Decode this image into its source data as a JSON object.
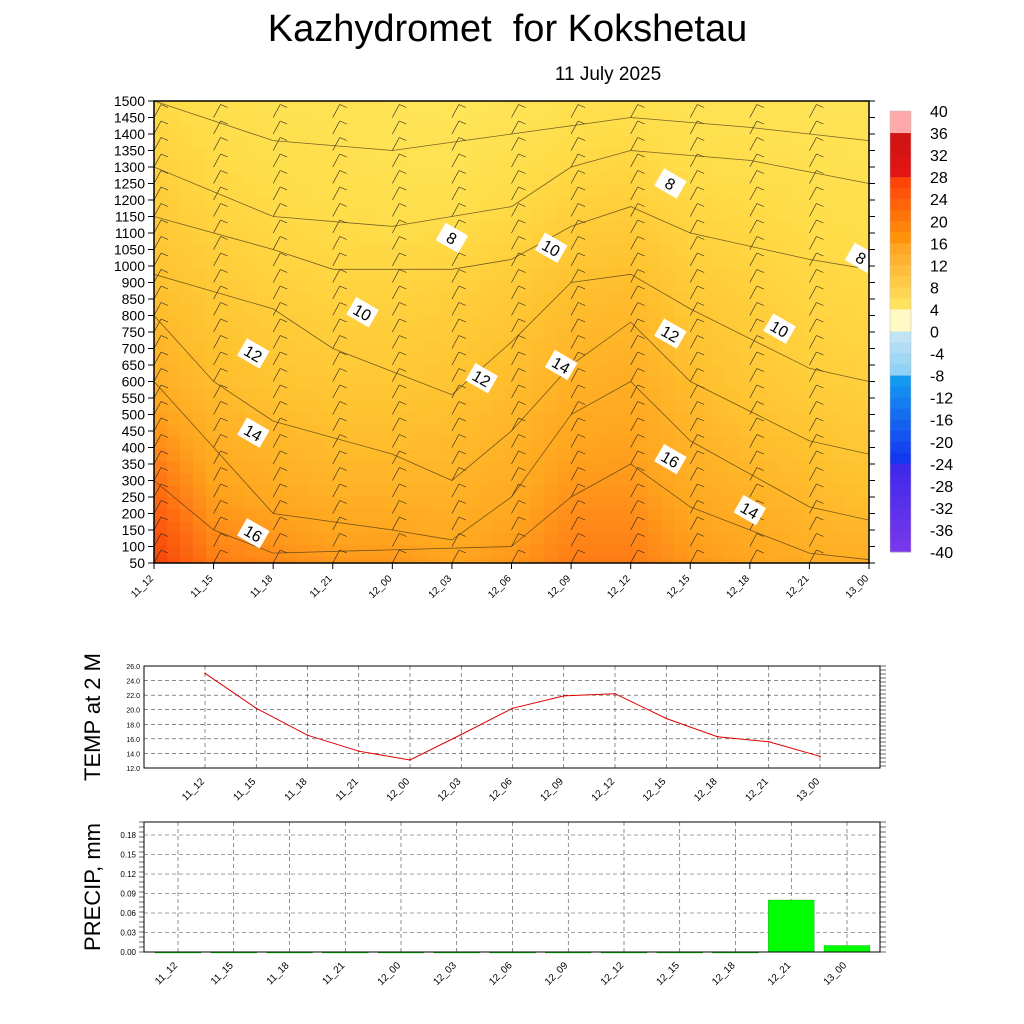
{
  "title": "Kazhydromet  for Kokshetau",
  "subtitle": "11 July 2025",
  "chart_data": [
    {
      "type": "heatmap",
      "description_y": "height levels",
      "x_tick_labels": [
        "11_12",
        "11_15",
        "11_18",
        "11_21",
        "12_00",
        "12_03",
        "12_06",
        "12_09",
        "12_12",
        "12_15",
        "12_18",
        "12_21",
        "13_00"
      ],
      "y_levels": [
        50,
        100,
        150,
        200,
        250,
        300,
        350,
        400,
        450,
        500,
        550,
        600,
        650,
        700,
        750,
        800,
        850,
        900,
        1000,
        1050,
        1100,
        1150,
        1200,
        1250,
        1300,
        1350,
        1400,
        1450,
        1500
      ],
      "ylim": [
        50,
        1500
      ],
      "colorbar": {
        "labels": [
          "40",
          "36",
          "32",
          "28",
          "24",
          "20",
          "16",
          "12",
          "8",
          "4",
          "0",
          "-4",
          "-8",
          "-12",
          "-16",
          "-20",
          "-24",
          "-28",
          "-32",
          "-36",
          "-40"
        ],
        "range": [
          -40,
          40
        ]
      },
      "contour_labels": [
        {
          "text": "8",
          "x": "12_03",
          "level": 1085
        },
        {
          "text": "8",
          "x": "12_14",
          "level": 1250
        },
        {
          "text": "8",
          "x": "12_23.6",
          "level": 1025
        },
        {
          "text": "10",
          "x": "11_22.5",
          "level": 810
        },
        {
          "text": "10",
          "x": "12_08",
          "level": 1055
        },
        {
          "text": "10",
          "x": "12_19.5",
          "level": 760
        },
        {
          "text": "12",
          "x": "11_17",
          "level": 685
        },
        {
          "text": "12",
          "x": "12_04.5",
          "level": 610
        },
        {
          "text": "12",
          "x": "12_14",
          "level": 745
        },
        {
          "text": "14",
          "x": "11_17",
          "level": 445
        },
        {
          "text": "14",
          "x": "12_08.5",
          "level": 650
        },
        {
          "text": "14",
          "x": "12_18",
          "level": 210
        },
        {
          "text": "16",
          "x": "11_17",
          "level": 140
        },
        {
          "text": "16",
          "x": "12_14",
          "level": 365
        }
      ],
      "temperature_grid": {
        "x": [
          0,
          1,
          2,
          3,
          4,
          5,
          6,
          7,
          8,
          9,
          10,
          11,
          12
        ],
        "levels": [
          50,
          300,
          600,
          900,
          1200,
          1500
        ],
        "values": [
          [
            24,
            19,
            18,
            17,
            17,
            16,
            17,
            19,
            19,
            17,
            16,
            15,
            15
          ],
          [
            20,
            16,
            15,
            14,
            14,
            14,
            15,
            17,
            17,
            15,
            14,
            13,
            12
          ],
          [
            15,
            13,
            12,
            11.5,
            11.5,
            12,
            13,
            14.5,
            15,
            13,
            11.5,
            10.5,
            10
          ],
          [
            12.5,
            11,
            10,
            9.5,
            9.5,
            10,
            11,
            12.5,
            13,
            11,
            10,
            9,
            8.5
          ],
          [
            10.5,
            9,
            8,
            7.5,
            7,
            7,
            8,
            9.5,
            10,
            8.5,
            8,
            7.5,
            7
          ],
          [
            8.5,
            7,
            6.5,
            6,
            5.5,
            5,
            5.5,
            6.5,
            7,
            6,
            6,
            5.5,
            5.5
          ]
        ]
      },
      "wind_barbs": "at every level and time step"
    },
    {
      "type": "line",
      "ylabel": "TEMP at 2 M",
      "categories": [
        "11_12",
        "11_15",
        "11_18",
        "11_21",
        "12_00",
        "12_03",
        "12_06",
        "12_09",
        "12_12",
        "12_15",
        "12_18",
        "12_21",
        "13_00"
      ],
      "values": [
        25.0,
        20.2,
        16.5,
        14.3,
        13.1,
        16.6,
        20.2,
        21.9,
        22.2,
        18.8,
        16.3,
        15.6,
        13.6
      ],
      "ylim": [
        12.0,
        26.0
      ],
      "ytick_labels": [
        "26.0",
        "24.0",
        "22.0",
        "20.0",
        "18.0",
        "16.0",
        "14.0",
        "12.0"
      ],
      "line_color": "#e00000",
      "grid": true
    },
    {
      "type": "bar",
      "ylabel": "PRECIP, mm",
      "categories": [
        "11_12",
        "11_15",
        "11_18",
        "11_21",
        "12_00",
        "12_03",
        "12_06",
        "12_09",
        "12_12",
        "12_15",
        "12_18",
        "12_21",
        "13_00"
      ],
      "values": [
        0,
        0,
        0,
        0,
        0,
        0,
        0,
        0,
        0,
        0,
        0,
        0.08,
        0.01
      ],
      "ylim": [
        0,
        0.2
      ],
      "ytick_labels": [
        "0.18",
        "0.15",
        "0.12",
        "0.09",
        "0.06",
        "0.03",
        "0.00"
      ],
      "bar_color": "#00ff00",
      "grid": true
    }
  ]
}
